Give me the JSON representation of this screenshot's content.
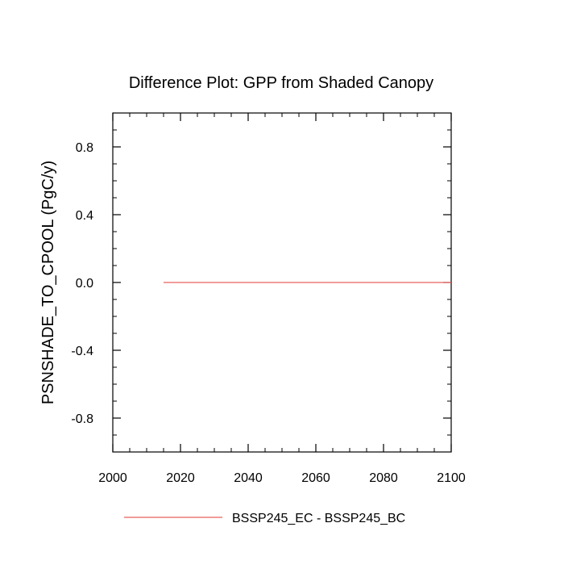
{
  "chart_data": {
    "type": "line",
    "title": "Difference Plot: GPP from Shaded Canopy",
    "xlabel": "",
    "ylabel": "PSNSHADE_TO_CPOOL  (PgC/y)",
    "xlim": [
      2000,
      2100
    ],
    "ylim": [
      -1.0,
      1.0
    ],
    "x_ticks": [
      2000,
      2020,
      2040,
      2060,
      2080,
      2100
    ],
    "x_tick_labels": [
      "2000",
      "2020",
      "2040",
      "2060",
      "2080",
      "2100"
    ],
    "y_ticks": [
      0.8,
      0.4,
      0.0,
      -0.4,
      -0.8
    ],
    "y_tick_labels": [
      "0.8",
      "0.4",
      "0.0",
      "-0.4",
      "-0.8"
    ],
    "grid": false,
    "legend_position": "bottom",
    "series": [
      {
        "name": "BSSP245_EC - BSSP245_BC",
        "color": "#e8605a",
        "x": [
          2015,
          2100
        ],
        "y": [
          0.0,
          0.0
        ]
      }
    ]
  }
}
